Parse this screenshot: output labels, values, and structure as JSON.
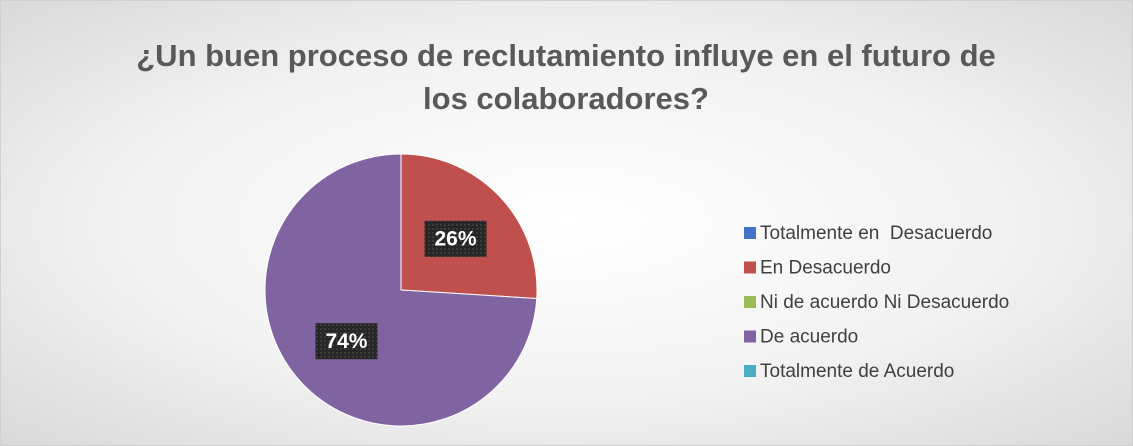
{
  "chart_data": {
    "type": "pie",
    "title": "¿Un buen proceso de reclutamiento influye en el futuro de los colaboradores?",
    "categories": [
      "Totalmente en  Desacuerdo",
      "En Desacuerdo",
      "Ni de acuerdo Ni Desacuerdo",
      "De acuerdo",
      "Totalmente de Acuerdo"
    ],
    "values": [
      0,
      26,
      0,
      74,
      0
    ],
    "value_labels": [
      null,
      "26%",
      null,
      "74%",
      null
    ],
    "colors": [
      "#4472c4",
      "#c0504d",
      "#9bbb59",
      "#8064a2",
      "#4bacc6"
    ],
    "legend": "right"
  }
}
